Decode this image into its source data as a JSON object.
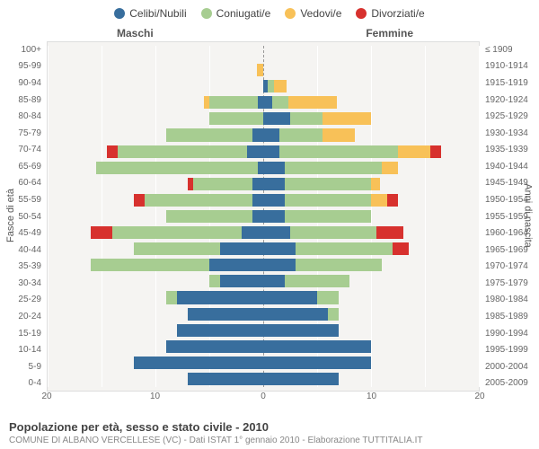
{
  "chart": {
    "type": "population-pyramid-stacked",
    "background_color": "#f5f4f2",
    "page_background": "#ffffff",
    "grid_color": "#ffffff",
    "border_color": "#dddddd",
    "center_line_color": "#999999",
    "categories": [
      {
        "key": "celibi",
        "label": "Celibi/Nubili",
        "color": "#386e9d"
      },
      {
        "key": "coniugati",
        "label": "Coniugati/e",
        "color": "#a7cd91"
      },
      {
        "key": "vedovi",
        "label": "Vedovi/e",
        "color": "#f8c158"
      },
      {
        "key": "divorziati",
        "label": "Divorziati/e",
        "color": "#d7312e"
      }
    ],
    "gender_labels": {
      "m": "Maschi",
      "f": "Femmine"
    },
    "axis_titles": {
      "left": "Fasce di età",
      "right": "Anni di nascita"
    },
    "x": {
      "max": 20,
      "ticks_left": [
        "20",
        "10",
        "0"
      ],
      "ticks_right": [
        "10",
        "20"
      ]
    },
    "age_labels": [
      "100+",
      "95-99",
      "90-94",
      "85-89",
      "80-84",
      "75-79",
      "70-74",
      "65-69",
      "60-64",
      "55-59",
      "50-54",
      "45-49",
      "40-44",
      "35-39",
      "30-34",
      "25-29",
      "20-24",
      "15-19",
      "10-14",
      "5-9",
      "0-4"
    ],
    "year_labels": [
      "≤ 1909",
      "1910-1914",
      "1915-1919",
      "1920-1924",
      "1925-1929",
      "1930-1934",
      "1935-1939",
      "1940-1944",
      "1945-1949",
      "1950-1954",
      "1955-1959",
      "1960-1964",
      "1965-1969",
      "1970-1974",
      "1975-1979",
      "1980-1984",
      "1985-1989",
      "1990-1994",
      "1995-1999",
      "2000-2004",
      "2005-2009"
    ],
    "rows": [
      {
        "m": {
          "celibi": 0,
          "coniugati": 0,
          "vedovi": 0,
          "divorziati": 0
        },
        "f": {
          "celibi": 0,
          "coniugati": 0,
          "vedovi": 0,
          "divorziati": 0
        }
      },
      {
        "m": {
          "celibi": 0,
          "coniugati": 0,
          "vedovi": 0.6,
          "divorziati": 0
        },
        "f": {
          "celibi": 0,
          "coniugati": 0,
          "vedovi": 0,
          "divorziati": 0
        }
      },
      {
        "m": {
          "celibi": 0,
          "coniugati": 0,
          "vedovi": 0,
          "divorziati": 0
        },
        "f": {
          "celibi": 0.4,
          "coniugati": 0.6,
          "vedovi": 1.2,
          "divorziati": 0
        }
      },
      {
        "m": {
          "celibi": 0.5,
          "coniugati": 4.5,
          "vedovi": 0.5,
          "divorziati": 0
        },
        "f": {
          "celibi": 0.8,
          "coniugati": 1.5,
          "vedovi": 4.5,
          "divorziati": 0
        }
      },
      {
        "m": {
          "celibi": 0,
          "coniugati": 5,
          "vedovi": 0,
          "divorziati": 0
        },
        "f": {
          "celibi": 2.5,
          "coniugati": 3,
          "vedovi": 4.5,
          "divorziati": 0
        }
      },
      {
        "m": {
          "celibi": 1,
          "coniugati": 8,
          "vedovi": 0,
          "divorziati": 0
        },
        "f": {
          "celibi": 1.5,
          "coniugati": 4,
          "vedovi": 3,
          "divorziati": 0
        }
      },
      {
        "m": {
          "celibi": 1.5,
          "coniugati": 12,
          "vedovi": 0,
          "divorziati": 1
        },
        "f": {
          "celibi": 1.5,
          "coniugati": 11,
          "vedovi": 3,
          "divorziati": 1
        }
      },
      {
        "m": {
          "celibi": 0.5,
          "coniugati": 15,
          "vedovi": 0,
          "divorziati": 0
        },
        "f": {
          "celibi": 2,
          "coniugati": 9,
          "vedovi": 1.5,
          "divorziati": 0
        }
      },
      {
        "m": {
          "celibi": 1,
          "coniugati": 5.5,
          "vedovi": 0,
          "divorziati": 0.5
        },
        "f": {
          "celibi": 2,
          "coniugati": 8,
          "vedovi": 0.8,
          "divorziati": 0
        }
      },
      {
        "m": {
          "celibi": 1,
          "coniugati": 10,
          "vedovi": 0,
          "divorziati": 1
        },
        "f": {
          "celibi": 2,
          "coniugati": 8,
          "vedovi": 1.5,
          "divorziati": 1
        }
      },
      {
        "m": {
          "celibi": 1,
          "coniugati": 8,
          "vedovi": 0,
          "divorziati": 0
        },
        "f": {
          "celibi": 2,
          "coniugati": 8,
          "vedovi": 0,
          "divorziati": 0
        }
      },
      {
        "m": {
          "celibi": 2,
          "coniugati": 12,
          "vedovi": 0,
          "divorziati": 2
        },
        "f": {
          "celibi": 2.5,
          "coniugati": 8,
          "vedovi": 0,
          "divorziati": 2.5
        }
      },
      {
        "m": {
          "celibi": 4,
          "coniugati": 8,
          "vedovi": 0,
          "divorziati": 0
        },
        "f": {
          "celibi": 3,
          "coniugati": 9,
          "vedovi": 0,
          "divorziati": 1.5
        }
      },
      {
        "m": {
          "celibi": 5,
          "coniugati": 11,
          "vedovi": 0,
          "divorziati": 0
        },
        "f": {
          "celibi": 3,
          "coniugati": 8,
          "vedovi": 0,
          "divorziati": 0
        }
      },
      {
        "m": {
          "celibi": 4,
          "coniugati": 1,
          "vedovi": 0,
          "divorziati": 0
        },
        "f": {
          "celibi": 2,
          "coniugati": 6,
          "vedovi": 0,
          "divorziati": 0
        }
      },
      {
        "m": {
          "celibi": 8,
          "coniugati": 1,
          "vedovi": 0,
          "divorziati": 0
        },
        "f": {
          "celibi": 5,
          "coniugati": 2,
          "vedovi": 0,
          "divorziati": 0
        }
      },
      {
        "m": {
          "celibi": 7,
          "coniugati": 0,
          "vedovi": 0,
          "divorziati": 0
        },
        "f": {
          "celibi": 6,
          "coniugati": 1,
          "vedovi": 0,
          "divorziati": 0
        }
      },
      {
        "m": {
          "celibi": 8,
          "coniugati": 0,
          "vedovi": 0,
          "divorziati": 0
        },
        "f": {
          "celibi": 7,
          "coniugati": 0,
          "vedovi": 0,
          "divorziati": 0
        }
      },
      {
        "m": {
          "celibi": 9,
          "coniugati": 0,
          "vedovi": 0,
          "divorziati": 0
        },
        "f": {
          "celibi": 10,
          "coniugati": 0,
          "vedovi": 0,
          "divorziati": 0
        }
      },
      {
        "m": {
          "celibi": 12,
          "coniugati": 0,
          "vedovi": 0,
          "divorziati": 0
        },
        "f": {
          "celibi": 10,
          "coniugati": 0,
          "vedovi": 0,
          "divorziati": 0
        }
      },
      {
        "m": {
          "celibi": 7,
          "coniugati": 0,
          "vedovi": 0,
          "divorziati": 0
        },
        "f": {
          "celibi": 7,
          "coniugati": 0,
          "vedovi": 0,
          "divorziati": 0
        }
      }
    ],
    "bar_height_ratio": 0.78,
    "label_fontsize": 10,
    "legend_fontsize": 12
  },
  "footer": {
    "title": "Popolazione per età, sesso e stato civile - 2010",
    "subtitle": "COMUNE DI ALBANO VERCELLESE (VC) - Dati ISTAT 1° gennaio 2010 - Elaborazione TUTTITALIA.IT"
  }
}
